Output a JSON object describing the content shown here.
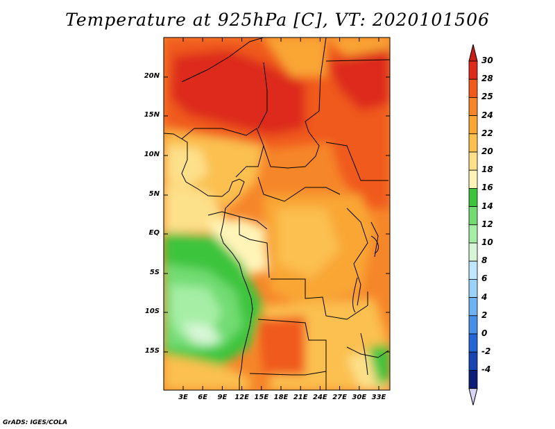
{
  "title": "Temperature at 925hPa [C], VT: 2020101506",
  "footer": "GrADS: IGES/COLA",
  "map": {
    "lat_labels": [
      "20N",
      "15N",
      "10N",
      "5N",
      "EQ",
      "5S",
      "10S",
      "15S"
    ],
    "lon_labels": [
      "3E",
      "6E",
      "9E",
      "12E",
      "15E",
      "18E",
      "21E",
      "24E",
      "27E",
      "30E",
      "33E"
    ]
  },
  "colorbar": {
    "labels": [
      "30",
      "28",
      "25",
      "24",
      "22",
      "20",
      "18",
      "16",
      "14",
      "12",
      "10",
      "8",
      "6",
      "4",
      "2",
      "0",
      "-2",
      "-4"
    ],
    "colors": [
      "#dd2a1a",
      "#f05a1a",
      "#f6862a",
      "#f9a634",
      "#fbc050",
      "#fde08a",
      "#fff4b8",
      "#3cc43c",
      "#72dc72",
      "#a6eea6",
      "#d7f6d7",
      "#bfe6fc",
      "#9ad2fa",
      "#6eb2f2",
      "#4690e8",
      "#2466d6",
      "#1744b0",
      "#0f1c78"
    ],
    "top_arrow_color": "#c81e14",
    "bottom_arrow_color": "#d8d4f4"
  }
}
